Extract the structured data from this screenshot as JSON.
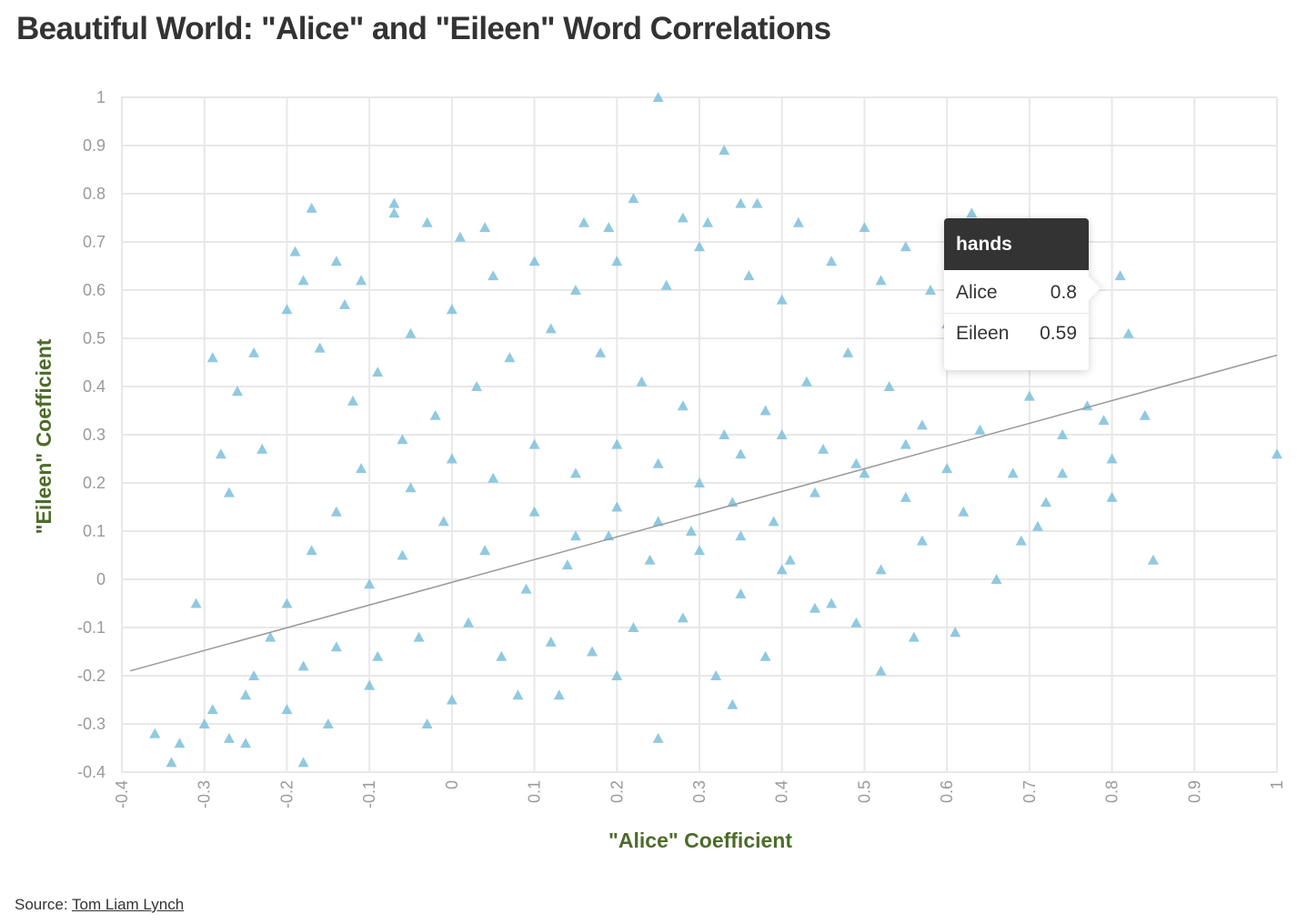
{
  "title": "Beautiful World: \"Alice\" and \"Eileen\" Word Correlations",
  "source": {
    "label": "Source:",
    "link_text": "Tom Liam Lynch"
  },
  "tooltip": {
    "word": "hands",
    "rows": [
      {
        "label": "Alice",
        "value": "0.8"
      },
      {
        "label": "Eileen",
        "value": "0.59"
      }
    ]
  },
  "colors": {
    "points": "#7dbfdb",
    "trend": "#999999",
    "axis_title": "#4d6b2a",
    "grid": "#e8e8e8",
    "tick_text": "#9a9a9a"
  },
  "chart_data": {
    "type": "scatter",
    "title": "Beautiful World: \"Alice\" and \"Eileen\" Word Correlations",
    "xlabel": "\"Alice\" Coefficient",
    "ylabel": "\"Eileen\" Coefficient",
    "xlim": [
      -0.4,
      1
    ],
    "ylim": [
      -0.4,
      1
    ],
    "x_ticks": [
      "-0.4",
      "-0.3",
      "-0.2",
      "-0.1",
      "0",
      "0.1",
      "0.2",
      "0.3",
      "0.4",
      "0.5",
      "0.6",
      "0.7",
      "0.8",
      "0.9",
      "1"
    ],
    "y_ticks": [
      "1",
      "0.9",
      "0.8",
      "0.7",
      "0.6",
      "0.5",
      "0.4",
      "0.3",
      "0.2",
      "0.1",
      "0",
      "-0.1",
      "-0.2",
      "-0.3",
      "-0.4"
    ],
    "grid": true,
    "marker": "triangle",
    "trend_line": {
      "x": [
        -0.39,
        1.0
      ],
      "y": [
        -0.19,
        0.465
      ]
    },
    "series": [
      {
        "points": [
          [
            0.25,
            1.0
          ],
          [
            0.33,
            0.89
          ],
          [
            0.22,
            0.79
          ],
          [
            -0.07,
            0.78
          ],
          [
            -0.17,
            0.77
          ],
          [
            0.35,
            0.78
          ],
          [
            0.37,
            0.78
          ],
          [
            -0.19,
            0.68
          ],
          [
            -0.29,
            0.46
          ],
          [
            -0.26,
            0.39
          ],
          [
            -0.28,
            0.26
          ],
          [
            -0.27,
            0.18
          ],
          [
            -0.36,
            -0.32
          ],
          [
            -0.34,
            -0.38
          ],
          [
            -0.33,
            -0.34
          ],
          [
            -0.3,
            -0.3
          ],
          [
            -0.31,
            -0.05
          ],
          [
            -0.29,
            -0.27
          ],
          [
            -0.18,
            -0.38
          ],
          [
            -0.03,
            -0.3
          ],
          [
            0.25,
            -0.33
          ],
          [
            0.34,
            -0.26
          ],
          [
            0.52,
            -0.19
          ],
          [
            0.61,
            -0.11
          ],
          [
            0.66,
            0.0
          ],
          [
            0.85,
            0.04
          ],
          [
            1.0,
            0.26
          ],
          [
            0.8,
            0.17
          ],
          [
            0.84,
            0.34
          ],
          [
            0.82,
            0.51
          ],
          [
            0.81,
            0.63
          ],
          [
            0.63,
            0.76
          ],
          [
            0.8,
            0.25
          ],
          [
            0.79,
            0.33
          ],
          [
            0.72,
            0.16
          ],
          [
            -0.07,
            0.76
          ],
          [
            0.01,
            0.71
          ],
          [
            -0.03,
            0.74
          ],
          [
            0.04,
            0.73
          ],
          [
            0.16,
            0.74
          ],
          [
            0.19,
            0.73
          ],
          [
            0.28,
            0.75
          ],
          [
            0.31,
            0.74
          ],
          [
            0.42,
            0.74
          ],
          [
            0.5,
            0.73
          ],
          [
            0.55,
            0.69
          ],
          [
            0.71,
            0.58
          ],
          [
            0.77,
            0.36
          ],
          [
            0.74,
            0.3
          ],
          [
            0.74,
            0.22
          ],
          [
            0.71,
            0.11
          ],
          [
            0.69,
            0.08
          ],
          [
            0.56,
            -0.12
          ],
          [
            0.49,
            -0.09
          ],
          [
            0.44,
            -0.06
          ],
          [
            0.38,
            -0.16
          ],
          [
            0.32,
            -0.2
          ],
          [
            0.2,
            -0.2
          ],
          [
            0.13,
            -0.24
          ],
          [
            0.08,
            -0.24
          ],
          [
            0.0,
            -0.25
          ],
          [
            -0.1,
            -0.22
          ],
          [
            -0.15,
            -0.3
          ],
          [
            -0.2,
            -0.27
          ],
          [
            -0.25,
            -0.24
          ],
          [
            -0.27,
            -0.33
          ],
          [
            -0.25,
            -0.34
          ],
          [
            -0.24,
            -0.2
          ],
          [
            -0.22,
            -0.12
          ],
          [
            -0.23,
            0.27
          ],
          [
            -0.24,
            0.47
          ],
          [
            -0.2,
            0.56
          ],
          [
            -0.18,
            0.62
          ],
          [
            -0.14,
            0.66
          ],
          [
            -0.11,
            0.62
          ],
          [
            -0.13,
            0.57
          ],
          [
            -0.16,
            0.48
          ],
          [
            -0.12,
            0.37
          ],
          [
            -0.09,
            0.43
          ],
          [
            -0.05,
            0.51
          ],
          [
            0.0,
            0.56
          ],
          [
            0.05,
            0.63
          ],
          [
            0.1,
            0.66
          ],
          [
            0.15,
            0.6
          ],
          [
            0.2,
            0.66
          ],
          [
            0.26,
            0.61
          ],
          [
            0.3,
            0.69
          ],
          [
            0.36,
            0.63
          ],
          [
            0.4,
            0.58
          ],
          [
            0.46,
            0.66
          ],
          [
            0.52,
            0.62
          ],
          [
            0.58,
            0.6
          ],
          [
            0.6,
            0.53
          ],
          [
            0.67,
            0.46
          ],
          [
            0.7,
            0.38
          ],
          [
            0.64,
            0.31
          ],
          [
            0.68,
            0.22
          ],
          [
            0.62,
            0.14
          ],
          [
            0.57,
            0.08
          ],
          [
            0.52,
            0.02
          ],
          [
            0.46,
            -0.05
          ],
          [
            0.41,
            0.04
          ],
          [
            0.35,
            -0.03
          ],
          [
            0.28,
            -0.08
          ],
          [
            0.22,
            -0.1
          ],
          [
            0.17,
            -0.15
          ],
          [
            0.12,
            -0.13
          ],
          [
            0.06,
            -0.16
          ],
          [
            0.02,
            -0.09
          ],
          [
            -0.04,
            -0.12
          ],
          [
            -0.09,
            -0.16
          ],
          [
            -0.14,
            -0.14
          ],
          [
            -0.18,
            -0.18
          ],
          [
            -0.2,
            -0.05
          ],
          [
            -0.17,
            0.06
          ],
          [
            -0.14,
            0.14
          ],
          [
            -0.11,
            0.23
          ],
          [
            -0.06,
            0.29
          ],
          [
            -0.02,
            0.34
          ],
          [
            0.03,
            0.4
          ],
          [
            0.07,
            0.46
          ],
          [
            0.12,
            0.52
          ],
          [
            0.18,
            0.47
          ],
          [
            0.23,
            0.41
          ],
          [
            0.28,
            0.36
          ],
          [
            0.33,
            0.3
          ],
          [
            0.38,
            0.35
          ],
          [
            0.43,
            0.41
          ],
          [
            0.48,
            0.47
          ],
          [
            0.53,
            0.4
          ],
          [
            0.57,
            0.32
          ],
          [
            0.6,
            0.23
          ],
          [
            0.55,
            0.17
          ],
          [
            0.49,
            0.24
          ],
          [
            0.44,
            0.18
          ],
          [
            0.39,
            0.12
          ],
          [
            0.34,
            0.16
          ],
          [
            0.29,
            0.1
          ],
          [
            0.24,
            0.04
          ],
          [
            0.19,
            0.09
          ],
          [
            0.14,
            0.03
          ],
          [
            0.09,
            -0.02
          ],
          [
            0.04,
            0.06
          ],
          [
            -0.01,
            0.12
          ],
          [
            -0.06,
            0.05
          ],
          [
            -0.1,
            -0.01
          ],
          [
            -0.05,
            0.19
          ],
          [
            0.0,
            0.25
          ],
          [
            0.05,
            0.21
          ],
          [
            0.1,
            0.28
          ],
          [
            0.15,
            0.22
          ],
          [
            0.2,
            0.28
          ],
          [
            0.25,
            0.24
          ],
          [
            0.3,
            0.2
          ],
          [
            0.35,
            0.26
          ],
          [
            0.4,
            0.3
          ],
          [
            0.45,
            0.27
          ],
          [
            0.5,
            0.22
          ],
          [
            0.55,
            0.28
          ],
          [
            0.1,
            0.14
          ],
          [
            0.15,
            0.09
          ],
          [
            0.2,
            0.15
          ],
          [
            0.25,
            0.12
          ],
          [
            0.3,
            0.06
          ],
          [
            0.35,
            0.09
          ],
          [
            0.4,
            0.02
          ]
        ]
      }
    ]
  }
}
